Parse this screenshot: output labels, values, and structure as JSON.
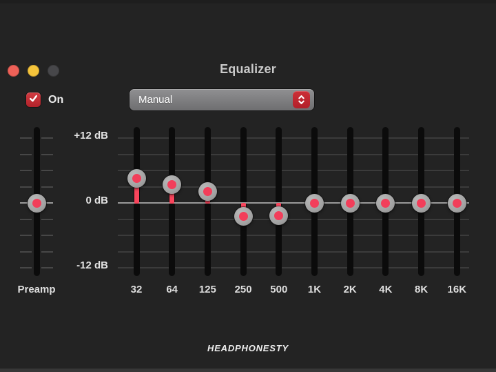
{
  "window": {
    "title": "Equalizer",
    "traffic_lights": [
      {
        "name": "close",
        "color": "#ee6158"
      },
      {
        "name": "minimize",
        "color": "#f5c43b"
      },
      {
        "name": "zoom",
        "color": "#47474a"
      }
    ]
  },
  "controls": {
    "on_checkbox": {
      "label": "On",
      "checked": true
    },
    "preset_dropdown": {
      "value": "Manual"
    }
  },
  "equalizer": {
    "axis": {
      "labels": [
        {
          "text": "+12 dB",
          "db": 12
        },
        {
          "text": "0 dB",
          "db": 0
        },
        {
          "text": "-12 dB",
          "db": -12
        }
      ],
      "min_db": -12,
      "max_db": 12,
      "gridline_step_db": 3
    },
    "preamp": {
      "label": "Preamp",
      "value_db": 0
    },
    "bands": [
      {
        "label": "32",
        "value_db": 4.5
      },
      {
        "label": "64",
        "value_db": 3.4
      },
      {
        "label": "125",
        "value_db": 2.1
      },
      {
        "label": "250",
        "value_db": -2.5
      },
      {
        "label": "500",
        "value_db": -2.3
      },
      {
        "label": "1K",
        "value_db": 0
      },
      {
        "label": "2K",
        "value_db": 0
      },
      {
        "label": "4K",
        "value_db": 0
      },
      {
        "label": "8K",
        "value_db": 0
      },
      {
        "label": "16K",
        "value_db": 0
      }
    ]
  },
  "watermark": "HEADPHONESTY",
  "colors": {
    "background": "#232323",
    "accent_red": "#f23e5a",
    "stem_red": "#f8455c",
    "control_red": "#c5262e",
    "grid_line": "#3b3b3b",
    "zero_line": "#9a9a9a",
    "track_black": "#0b0b0b",
    "knob_gray": "#a3a3a3",
    "tick_gray": "#474747"
  }
}
